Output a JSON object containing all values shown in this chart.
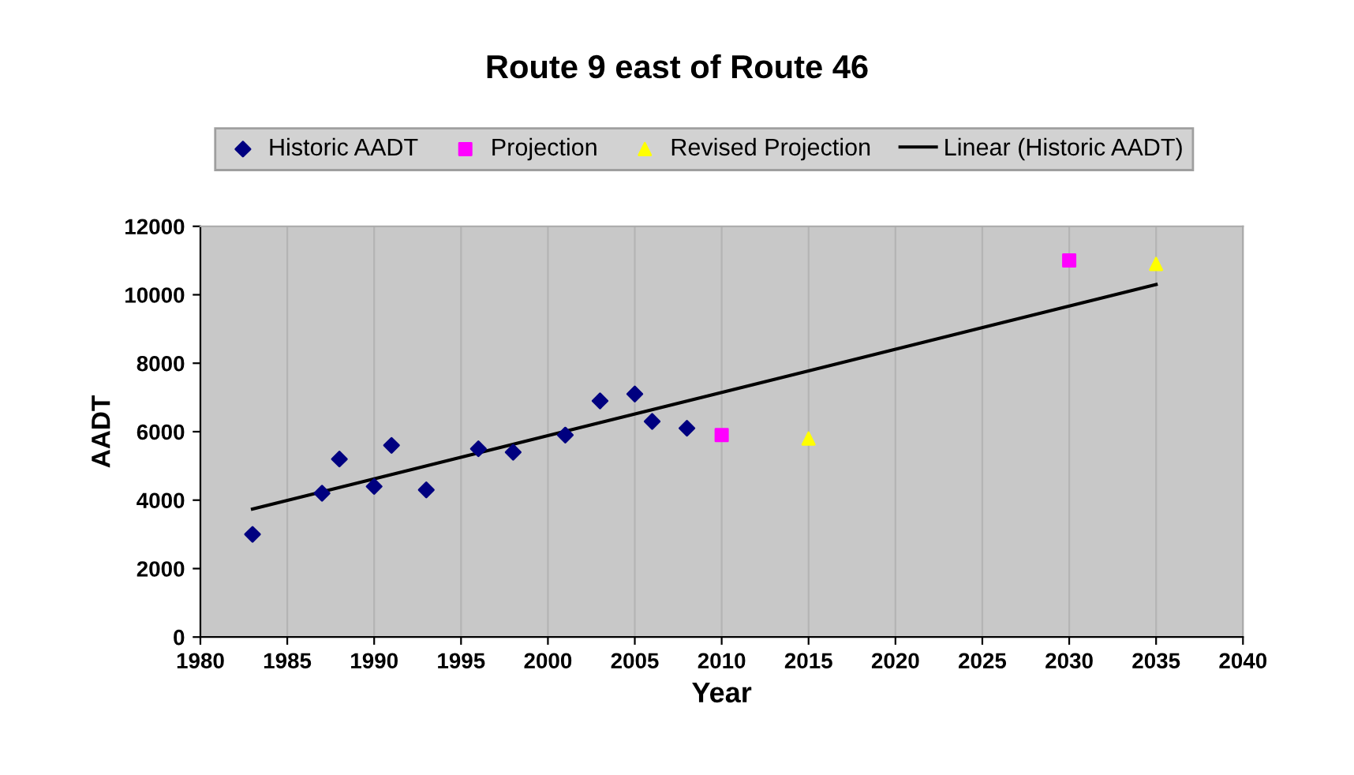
{
  "chart_data": {
    "type": "scatter",
    "title": "Route 9 east of Route 46",
    "xlabel": "Year",
    "ylabel": "AADT",
    "xlim": [
      1980,
      2040
    ],
    "xticks": [
      1980,
      1985,
      1990,
      1995,
      2000,
      2005,
      2010,
      2015,
      2020,
      2025,
      2030,
      2035,
      2040
    ],
    "ylim": [
      0,
      12000
    ],
    "yticks": [
      0,
      2000,
      4000,
      6000,
      8000,
      10000,
      12000
    ],
    "grid": "x",
    "legend": "top",
    "series": [
      {
        "name": "Historic AADT",
        "marker": "diamond",
        "color": "#000080",
        "x": [
          1983,
          1987,
          1988,
          1990,
          1991,
          1993,
          1996,
          1998,
          2001,
          2003,
          2005,
          2006,
          2008
        ],
        "values": [
          3000,
          4200,
          5200,
          4400,
          5600,
          4300,
          5500,
          5400,
          5900,
          6900,
          7100,
          6300,
          6100
        ]
      },
      {
        "name": "Projection",
        "marker": "square",
        "color": "#ff00ff",
        "x": [
          2010,
          2030
        ],
        "values": [
          5900,
          11000
        ]
      },
      {
        "name": "Revised Projection",
        "marker": "triangle",
        "color": "#ffff00",
        "x": [
          2015,
          2035
        ],
        "values": [
          5800,
          10900
        ]
      },
      {
        "name": "Linear (Historic AADT)",
        "type": "line",
        "marker": "none",
        "color": "#000000",
        "x": [
          1983,
          2035
        ],
        "values": [
          3740,
          10300
        ]
      }
    ]
  }
}
